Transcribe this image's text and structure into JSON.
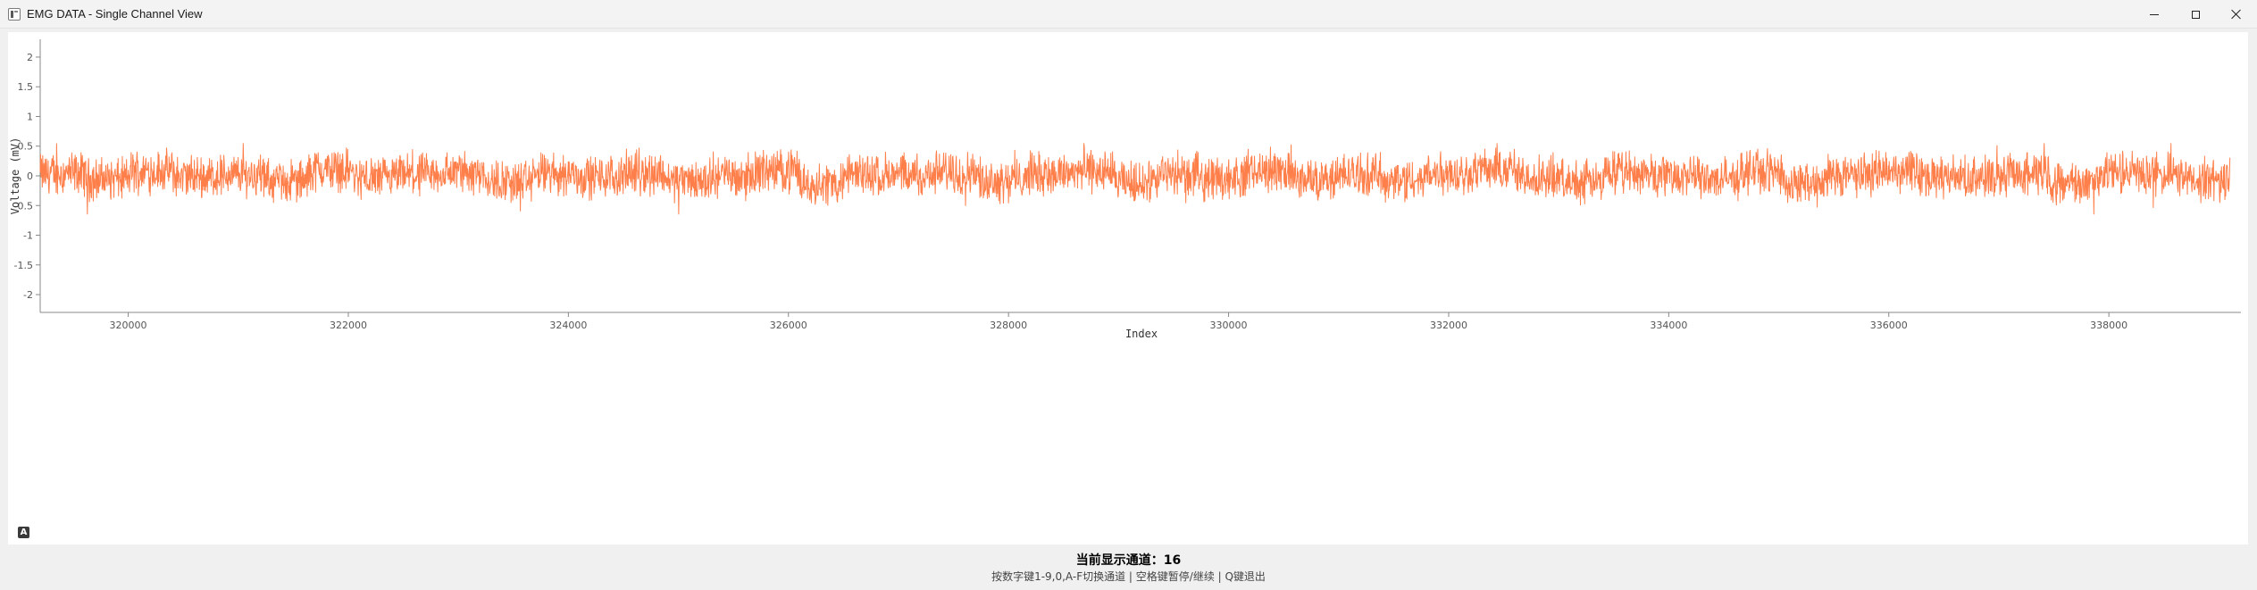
{
  "window": {
    "title": "EMG DATA - Single Channel View",
    "icon": "app-window-icon",
    "controls": {
      "minimize": "minimize-icon",
      "maximize": "maximize-icon",
      "close": "close-icon"
    }
  },
  "plot": {
    "auto_range_button_label": "A"
  },
  "status": {
    "channel_prefix": "当前显示通道：",
    "channel_number": "16",
    "hint": "按数字键1-9,0,A-F切换通道 | 空格键暂停/继续 | Q键退出"
  },
  "colors": {
    "trace": "#ff7f4a",
    "axis": "#888888",
    "plot_background": "#ffffff",
    "window_background": "#f0f0f0"
  },
  "chart_data": {
    "type": "line",
    "xlabel": "Index",
    "ylabel": "Voltage (mV)",
    "xlim": [
      319200,
      339200
    ],
    "ylim": [
      -2.3,
      2.3
    ],
    "x_ticks": [
      320000,
      322000,
      324000,
      326000,
      328000,
      330000,
      332000,
      334000,
      336000,
      338000
    ],
    "y_ticks": [
      -2,
      -1.5,
      -1,
      -0.5,
      0,
      0.5,
      1,
      1.5,
      2
    ],
    "y_tick_labels": [
      "-2",
      "-1.5",
      "-1",
      "-0.5",
      "0",
      "0.5",
      "1",
      "1.5",
      "2"
    ],
    "grid": false,
    "series": [
      {
        "x_start": 319200,
        "x_end": 339100,
        "color": "#ff7f4a",
        "y_min": -0.65,
        "y_max": 0.55,
        "values": [
          0.15,
          -0.22,
          0.31,
          -0.05,
          0.09,
          -0.35,
          0.42,
          -0.18,
          0.03,
          0.27,
          -0.41,
          0.12,
          -0.08,
          0.2,
          -0.3,
          0.05,
          0.36,
          -0.5,
          0.1,
          -0.02,
          0.23,
          -0.27,
          0.14,
          0.32,
          -0.45,
          0.06,
          -0.12,
          0.4,
          -0.2,
          0.08,
          -0.33,
          0.18,
          0.47,
          -0.1,
          -0.38,
          0.22,
          0.02,
          -0.24,
          0.29,
          -0.55,
          0.11,
          0.34,
          -0.07,
          -0.19,
          0.26,
          -0.42,
          0.16,
          0.05,
          -0.3,
          0.38
        ]
      }
    ]
  }
}
